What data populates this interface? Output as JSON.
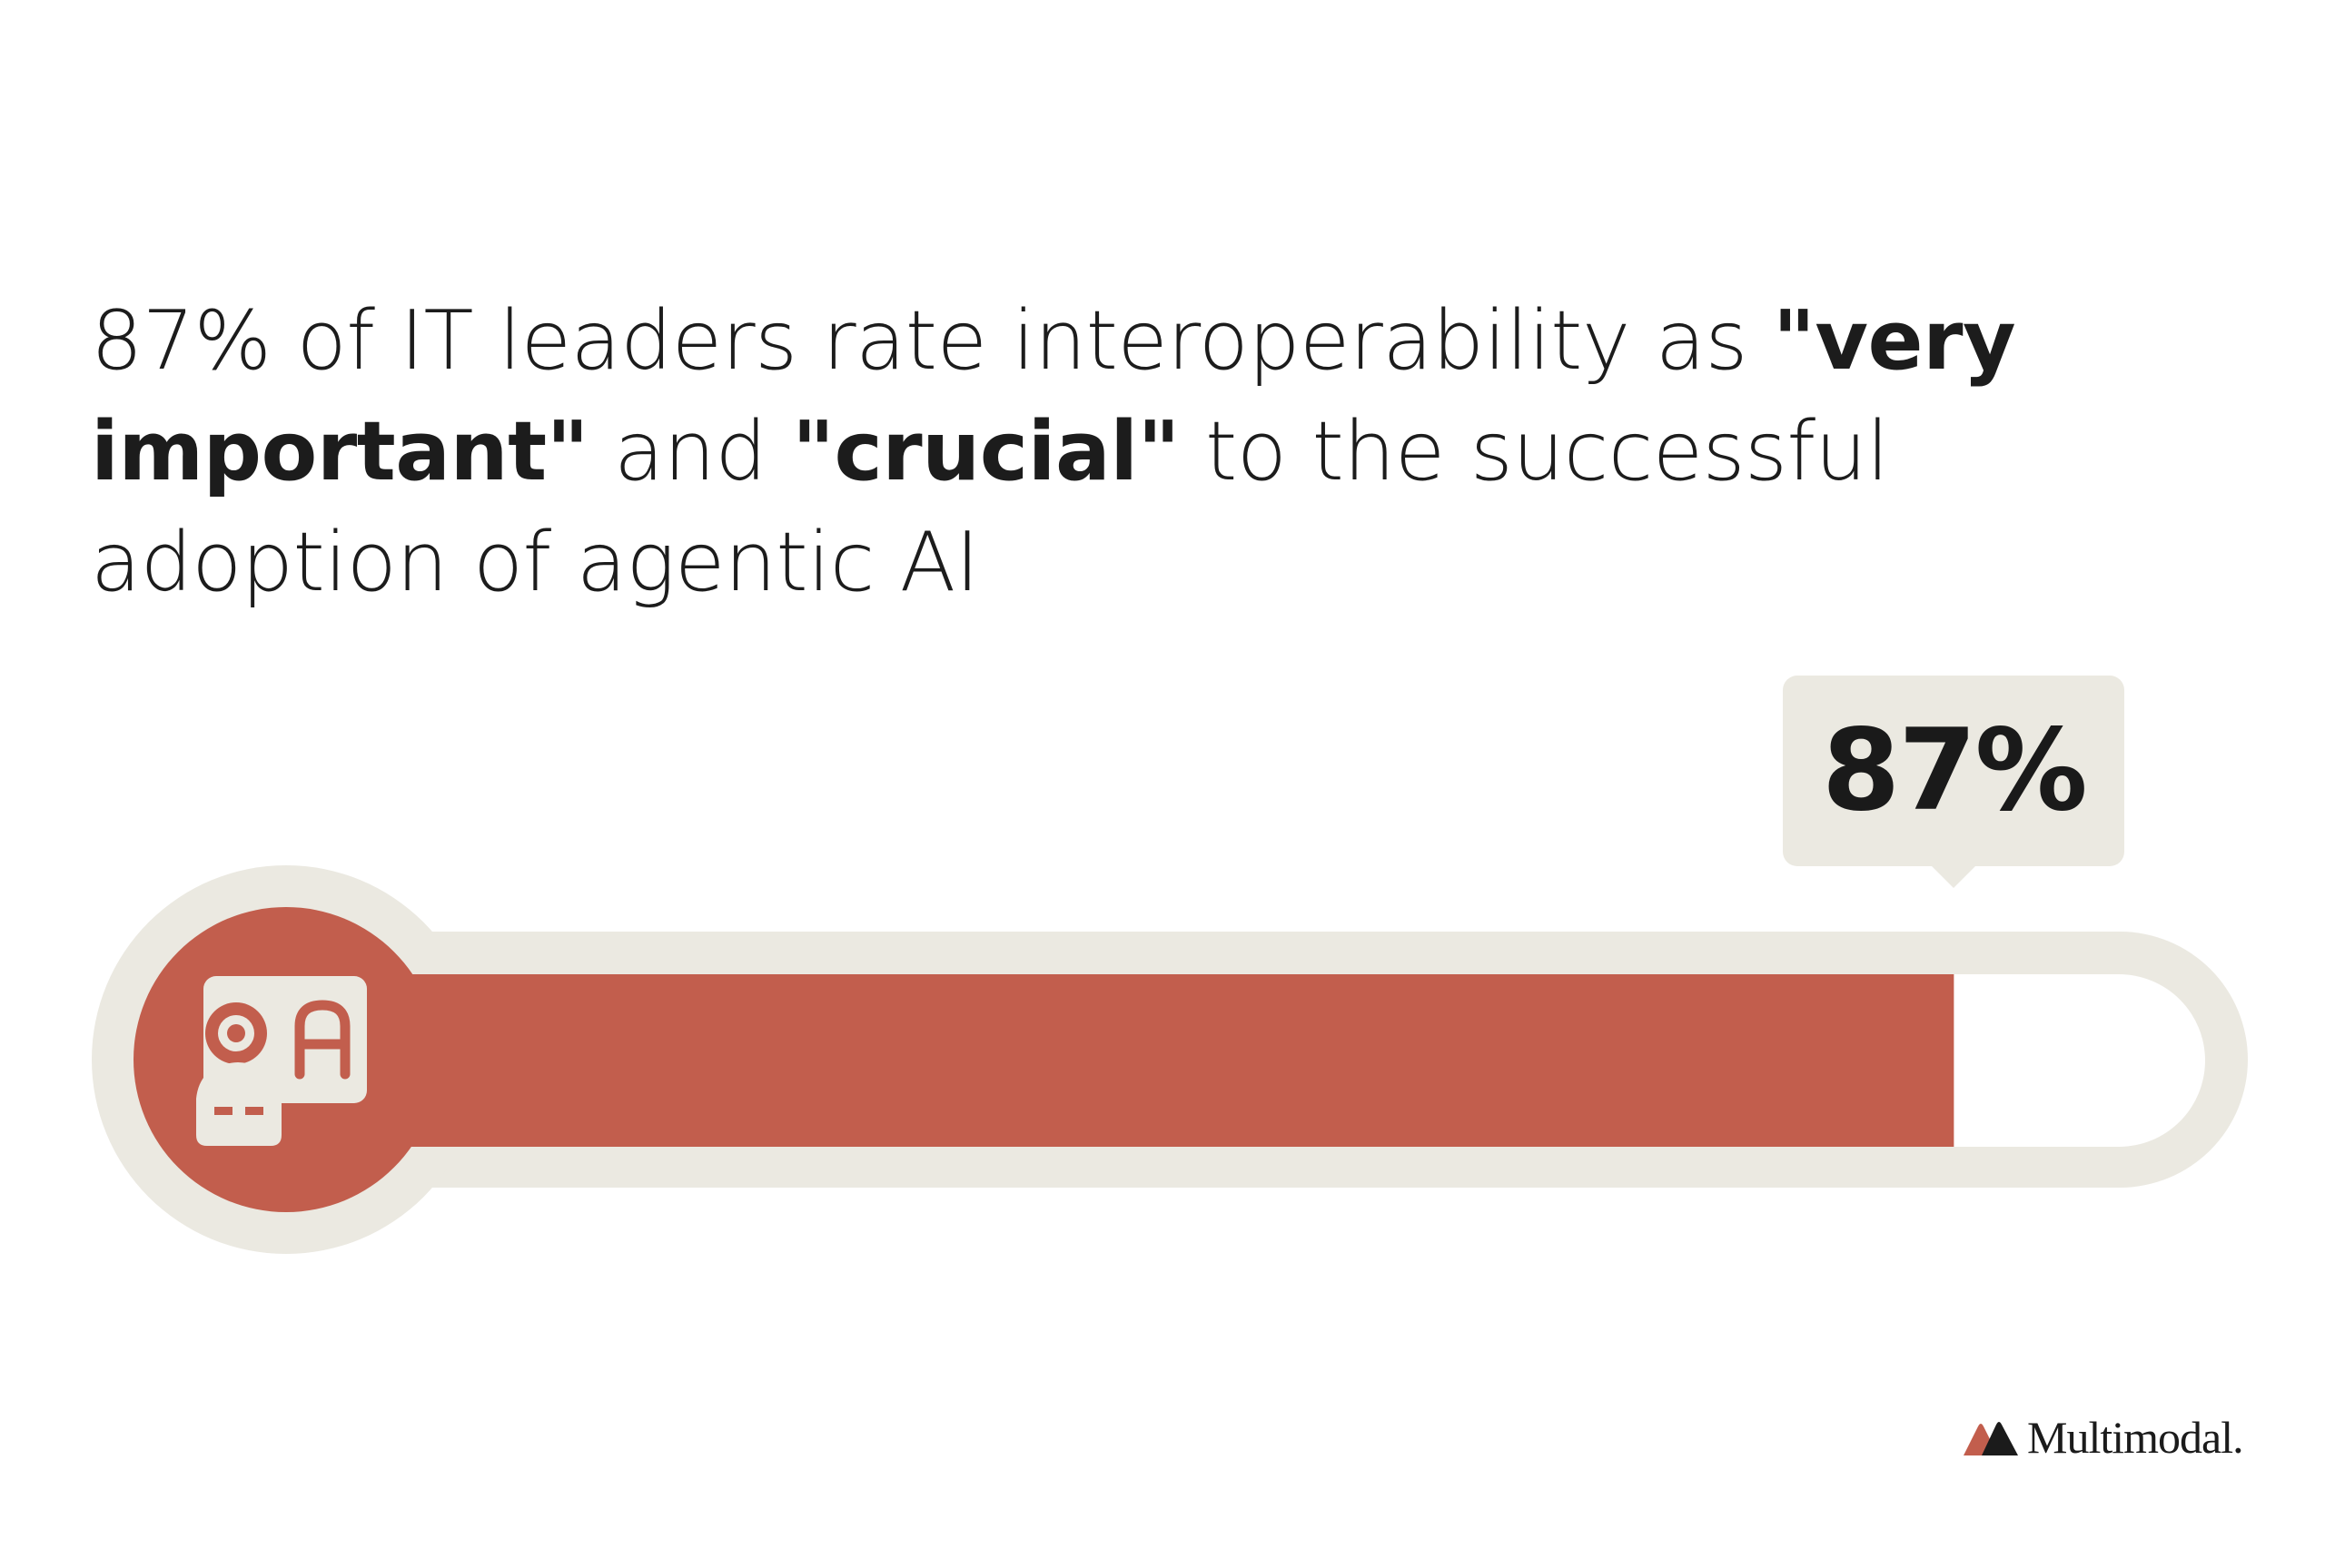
{
  "headline": {
    "part1": "87% of IT leaders rate interoperability as ",
    "bold1": "\"very important\"",
    "part2": " and ",
    "bold2": "\"crucial\"",
    "part3": " to the successful adoption of agentic AI"
  },
  "chart_data": {
    "type": "bar",
    "categories": [
      ""
    ],
    "values": [
      87
    ],
    "ylim": [
      0,
      100
    ],
    "data_label": "87%",
    "title": "",
    "xlabel": "",
    "ylabel": ""
  },
  "colors": {
    "fill": "#c25e4d",
    "track": "#ebe9e1",
    "background": "#ffffff",
    "text": "#1c1c1c"
  },
  "icons": {
    "gauge_icon": "agent-icon",
    "logo_icon": "multimodal-logo-icon"
  },
  "logo": {
    "text": "Multimodal."
  }
}
